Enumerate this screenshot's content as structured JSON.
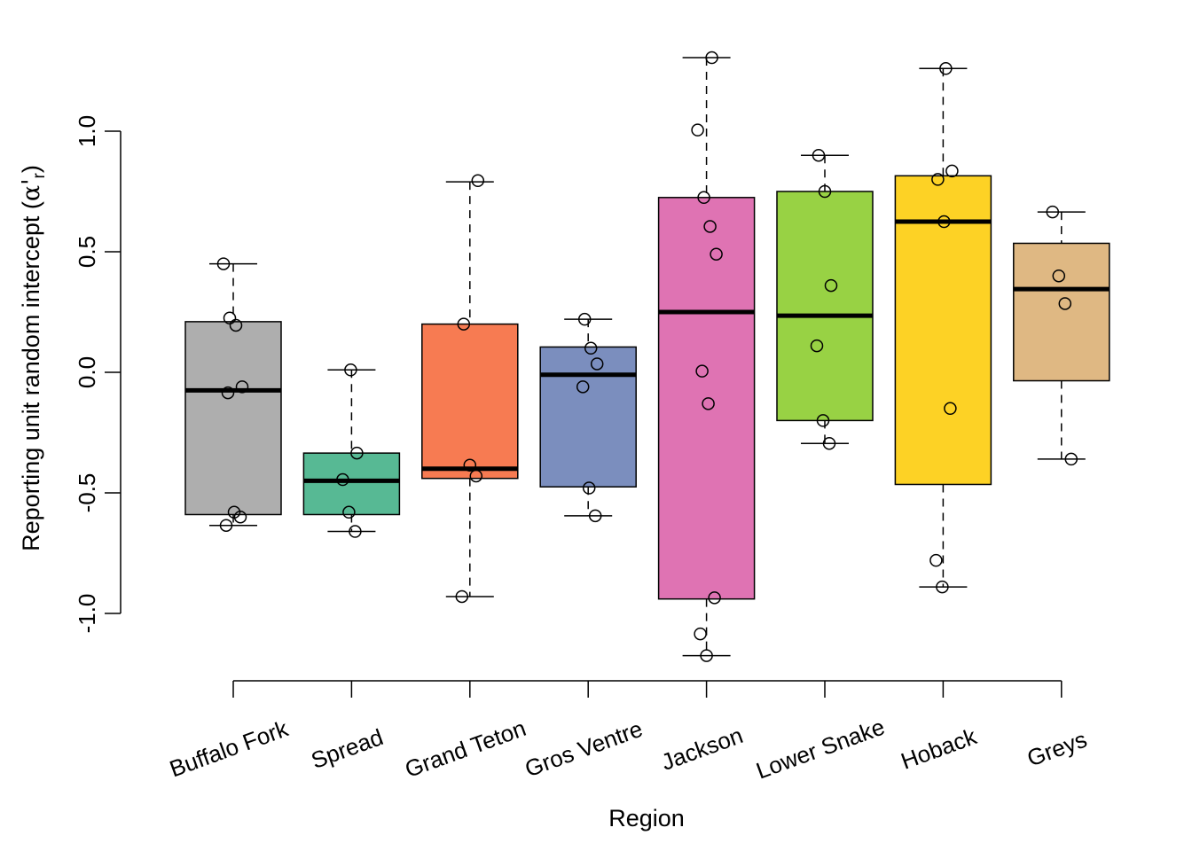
{
  "chart_data": {
    "type": "boxplot",
    "title": "",
    "xlabel": "Region",
    "ylabel_main": "Reporting unit random intercept (",
    "ylabel_symbol": "α'",
    "ylabel_subscript": "r",
    "ylabel_close": ")",
    "ylim": [
      -1.25,
      1.35
    ],
    "yticks": [
      -1.0,
      -0.5,
      0.0,
      0.5,
      1.0
    ],
    "ytick_labels": [
      "-1.0",
      "-0.5",
      "0.0",
      "0.5",
      "1.0"
    ],
    "grid": false,
    "legend": "none",
    "categories": [
      "Buffalo Fork",
      "Spread",
      "Grand Teton",
      "Gros Ventre",
      "Jackson",
      "Lower Snake",
      "Hoback",
      "Greys"
    ],
    "boxes": [
      {
        "name": "Buffalo Fork",
        "color": "#AEAEAE",
        "whisker_low": -0.635,
        "q1": -0.59,
        "median": -0.075,
        "q3": 0.21,
        "whisker_high": 0.45,
        "points": [
          0.45,
          0.225,
          0.195,
          -0.06,
          -0.085,
          -0.58,
          -0.6,
          -0.635
        ]
      },
      {
        "name": "Spread",
        "color": "#57B994",
        "whisker_low": -0.66,
        "q1": -0.59,
        "median": -0.45,
        "q3": -0.335,
        "whisker_high": 0.01,
        "points": [
          0.01,
          -0.335,
          -0.445,
          -0.58,
          -0.66
        ]
      },
      {
        "name": "Grand Teton",
        "color": "#F77B52",
        "whisker_low": -0.93,
        "q1": -0.44,
        "median": -0.4,
        "q3": 0.2,
        "whisker_high": 0.79,
        "points": [
          0.795,
          0.2,
          -0.385,
          -0.43,
          -0.93
        ]
      },
      {
        "name": "Gros Ventre",
        "color": "#7B8EBE",
        "whisker_low": -0.595,
        "q1": -0.475,
        "median": -0.01,
        "q3": 0.105,
        "whisker_high": 0.22,
        "points": [
          0.22,
          0.1,
          0.035,
          -0.06,
          -0.48,
          -0.595
        ]
      },
      {
        "name": "Jackson",
        "color": "#DF73B3",
        "whisker_low": -1.175,
        "q1": -0.94,
        "median": 0.25,
        "q3": 0.725,
        "whisker_high": 1.305,
        "points": [
          1.305,
          1.005,
          0.725,
          0.605,
          0.49,
          0.005,
          -0.13,
          -0.935,
          -1.085,
          -1.175
        ]
      },
      {
        "name": "Lower Snake",
        "color": "#98D244",
        "whisker_low": -0.295,
        "q1": -0.2,
        "median": 0.235,
        "q3": 0.75,
        "whisker_high": 0.9,
        "points": [
          0.9,
          0.75,
          0.36,
          0.11,
          -0.2,
          -0.295
        ]
      },
      {
        "name": "Hoback",
        "color": "#FDD225",
        "whisker_low": -0.89,
        "q1": -0.465,
        "median": 0.625,
        "q3": 0.815,
        "whisker_high": 1.26,
        "points": [
          1.26,
          0.835,
          0.8,
          0.625,
          -0.15,
          -0.78,
          -0.89
        ]
      },
      {
        "name": "Greys",
        "color": "#DFB883",
        "whisker_low": -0.36,
        "q1": -0.035,
        "median": 0.345,
        "q3": 0.535,
        "whisker_high": 0.665,
        "points": [
          0.665,
          0.4,
          0.285,
          -0.36
        ]
      }
    ]
  }
}
